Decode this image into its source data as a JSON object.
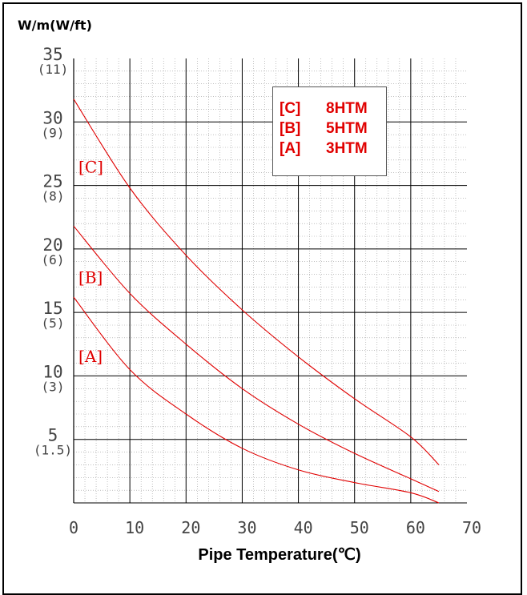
{
  "chart_data": {
    "type": "line",
    "ylabel": "W/m(W/ft)",
    "xlabel": "Pipe Temperature(℃)",
    "xlim": [
      0,
      70
    ],
    "ylim": [
      0,
      35
    ],
    "x_ticks": [
      "0",
      "10",
      "20",
      "30",
      "40",
      "50",
      "60",
      "70"
    ],
    "y_ticks": [
      {
        "value": 35,
        "primary": "35",
        "secondary": "(11)"
      },
      {
        "value": 30,
        "primary": "30",
        "secondary": "(9)"
      },
      {
        "value": 25,
        "primary": "25",
        "secondary": "(8)"
      },
      {
        "value": 20,
        "primary": "20",
        "secondary": "(6)"
      },
      {
        "value": 15,
        "primary": "15",
        "secondary": "(5)"
      },
      {
        "value": 10,
        "primary": "10",
        "secondary": "(3)"
      },
      {
        "value": 5,
        "primary": "5",
        "secondary": "(1.5)"
      }
    ],
    "grid": true,
    "legend": [
      {
        "code": "[C]",
        "name": "8HTM"
      },
      {
        "code": "[B]",
        "name": "5HTM"
      },
      {
        "code": "[A]",
        "name": "3HTM"
      }
    ],
    "series": [
      {
        "label": "[C]",
        "label_at": [
          4,
          26
        ],
        "x": [
          0,
          10,
          20,
          30,
          40,
          50,
          60,
          65
        ],
        "y": [
          31.8,
          24.8,
          19.5,
          15.2,
          11.5,
          8.2,
          5.2,
          3.0
        ]
      },
      {
        "label": "[B]",
        "label_at": [
          4,
          17.3
        ],
        "x": [
          0,
          10,
          20,
          30,
          40,
          50,
          60,
          65
        ],
        "y": [
          21.8,
          16.5,
          12.5,
          9.0,
          6.2,
          3.9,
          1.9,
          0.9
        ]
      },
      {
        "label": "[A]",
        "label_at": [
          4,
          11.1
        ],
        "x": [
          0,
          10,
          20,
          30,
          40,
          50,
          60,
          65
        ],
        "y": [
          16.2,
          10.5,
          7.0,
          4.3,
          2.6,
          1.6,
          0.8,
          0.0
        ]
      }
    ],
    "line_color": "#e00000"
  }
}
